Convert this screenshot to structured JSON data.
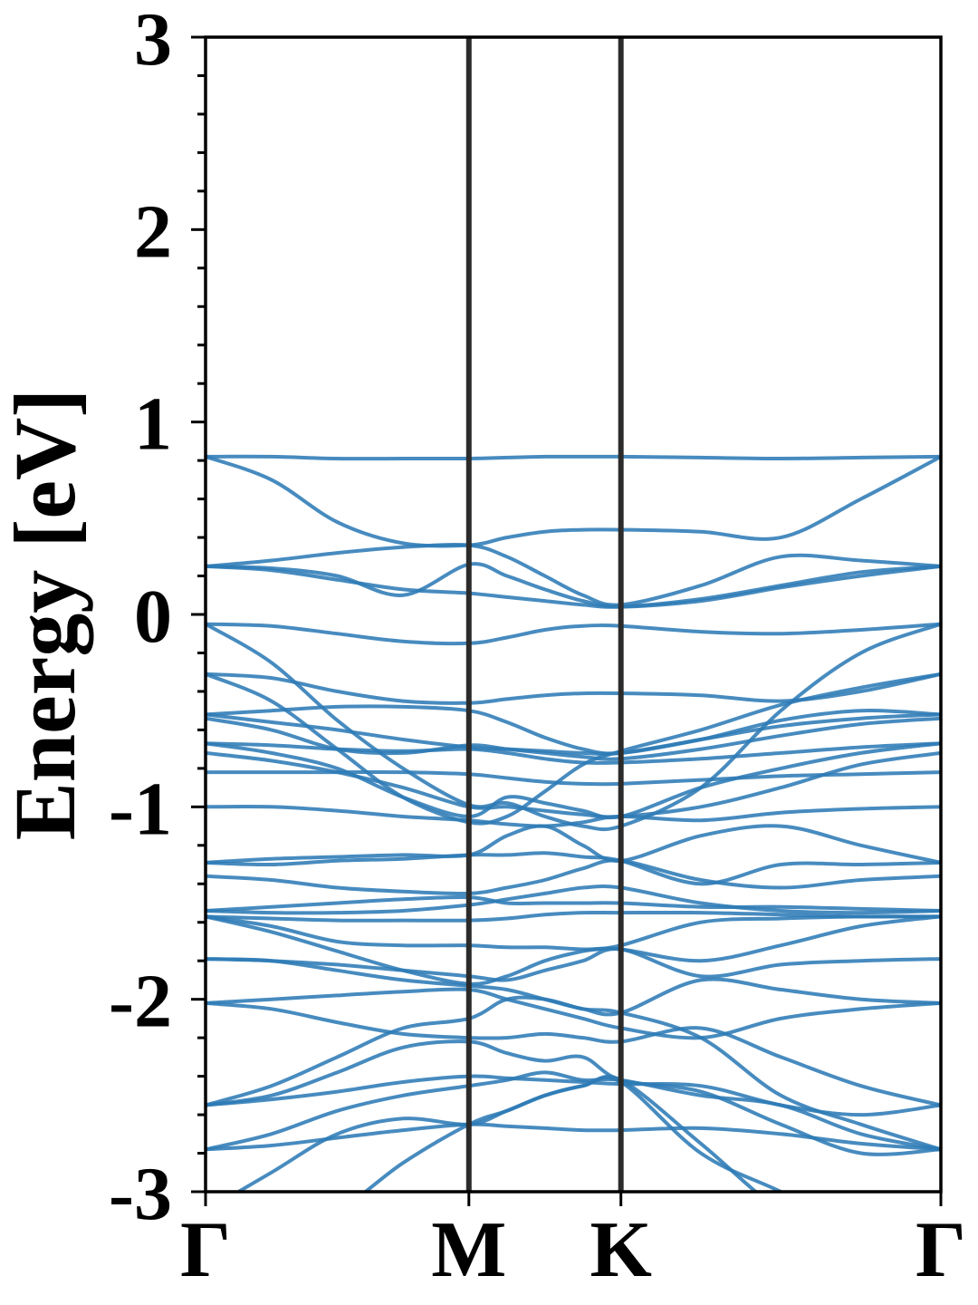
{
  "chart_data": {
    "type": "line",
    "title": "",
    "ylabel": "Energy [eV]",
    "xlabel": "",
    "ylim": [
      -3,
      3
    ],
    "yticks": [
      "-3",
      "-2",
      "-1",
      "0",
      "1",
      "2",
      "3"
    ],
    "y_minor_step": 0.2,
    "xlim": [
      0,
      2.7925
    ],
    "kpoints": [
      {
        "label": "Γ",
        "x": 0
      },
      {
        "label": "M",
        "x": 1.0
      },
      {
        "label": "K",
        "x": 1.5774
      },
      {
        "label": "Γ",
        "x": 2.7925
      }
    ],
    "band_color": "#2e7bb6",
    "kpoint_line_color": "#2b2b2b",
    "grid": false,
    "legend": "none",
    "x": [
      0,
      0.25,
      0.5,
      0.75,
      1.0,
      1.1443,
      1.2887,
      1.433,
      1.5774,
      1.8812,
      2.1849,
      2.4887,
      2.7925
    ],
    "bands": [
      [
        0.82,
        0.82,
        0.81,
        0.81,
        0.81,
        0.815,
        0.82,
        0.82,
        0.82,
        0.815,
        0.81,
        0.815,
        0.82
      ],
      [
        0.82,
        0.7,
        0.48,
        0.37,
        0.36,
        0.4,
        0.43,
        0.44,
        0.44,
        0.43,
        0.4,
        0.6,
        0.82
      ],
      [
        0.25,
        0.28,
        0.32,
        0.35,
        0.36,
        0.3,
        0.2,
        0.1,
        0.05,
        0.15,
        0.3,
        0.28,
        0.25
      ],
      [
        0.25,
        0.24,
        0.2,
        0.1,
        0.26,
        0.2,
        0.13,
        0.07,
        0.04,
        0.07,
        0.14,
        0.2,
        0.25
      ],
      [
        0.25,
        0.23,
        0.18,
        0.13,
        0.11,
        0.09,
        0.07,
        0.05,
        0.04,
        0.08,
        0.15,
        0.22,
        0.25
      ],
      [
        -0.05,
        -0.06,
        -0.1,
        -0.14,
        -0.15,
        -0.12,
        -0.08,
        -0.06,
        -0.06,
        -0.09,
        -0.1,
        -0.08,
        -0.05
      ],
      [
        -0.05,
        -0.25,
        -0.55,
        -0.8,
        -0.99,
        -0.98,
        -1.05,
        -1.1,
        -1.1,
        -0.9,
        -0.5,
        -0.2,
        -0.05
      ],
      [
        -0.31,
        -0.33,
        -0.4,
        -0.45,
        -0.46,
        -0.44,
        -0.42,
        -0.41,
        -0.41,
        -0.42,
        -0.45,
        -0.4,
        -0.31
      ],
      [
        -0.31,
        -0.45,
        -0.7,
        -0.95,
        -1.08,
        -1.05,
        -0.92,
        -0.78,
        -0.71,
        -0.6,
        -0.47,
        -0.38,
        -0.31
      ],
      [
        -0.52,
        -0.5,
        -0.48,
        -0.48,
        -0.5,
        -0.56,
        -0.64,
        -0.7,
        -0.72,
        -0.65,
        -0.55,
        -0.5,
        -0.52
      ],
      [
        -0.52,
        -0.56,
        -0.6,
        -0.65,
        -0.69,
        -0.7,
        -0.71,
        -0.72,
        -0.72,
        -0.65,
        -0.58,
        -0.54,
        -0.52
      ],
      [
        -0.54,
        -0.6,
        -0.7,
        -0.72,
        -0.68,
        -0.7,
        -0.72,
        -0.74,
        -0.75,
        -0.7,
        -0.63,
        -0.57,
        -0.54
      ],
      [
        -0.67,
        -0.68,
        -0.7,
        -0.71,
        -0.7,
        -0.72,
        -0.75,
        -0.77,
        -0.77,
        -0.75,
        -0.72,
        -0.69,
        -0.67
      ],
      [
        -0.67,
        -0.72,
        -0.8,
        -0.95,
        -1.05,
        -0.95,
        -0.98,
        -1.02,
        -1.05,
        -0.9,
        -0.8,
        -0.72,
        -0.67
      ],
      [
        -0.72,
        -0.76,
        -0.82,
        -0.9,
        -1.0,
        -1.0,
        -1.02,
        -1.04,
        -1.05,
        -1.0,
        -0.9,
        -0.78,
        -0.72
      ],
      [
        -0.82,
        -0.82,
        -0.82,
        -0.82,
        -0.83,
        -0.85,
        -0.87,
        -0.88,
        -0.88,
        -0.86,
        -0.84,
        -0.83,
        -0.82
      ],
      [
        -1.0,
        -1.0,
        -1.02,
        -1.05,
        -1.07,
        -1.09,
        -1.1,
        -1.08,
        -1.05,
        -1.07,
        -1.03,
        -1.01,
        -1.0
      ],
      [
        -1.29,
        -1.27,
        -1.26,
        -1.25,
        -1.25,
        -1.15,
        -1.1,
        -1.2,
        -1.28,
        -1.15,
        -1.1,
        -1.2,
        -1.29
      ],
      [
        -1.29,
        -1.3,
        -1.28,
        -1.27,
        -1.25,
        -1.25,
        -1.24,
        -1.26,
        -1.28,
        -1.4,
        -1.3,
        -1.3,
        -1.29
      ],
      [
        -1.36,
        -1.38,
        -1.42,
        -1.44,
        -1.45,
        -1.42,
        -1.38,
        -1.32,
        -1.28,
        -1.38,
        -1.42,
        -1.38,
        -1.36
      ],
      [
        -1.54,
        -1.52,
        -1.5,
        -1.48,
        -1.47,
        -1.5,
        -1.5,
        -1.5,
        -1.5,
        -1.52,
        -1.52,
        -1.53,
        -1.54
      ],
      [
        -1.54,
        -1.55,
        -1.55,
        -1.54,
        -1.51,
        -1.48,
        -1.45,
        -1.42,
        -1.42,
        -1.5,
        -1.54,
        -1.55,
        -1.54
      ],
      [
        -1.57,
        -1.58,
        -1.59,
        -1.59,
        -1.59,
        -1.58,
        -1.56,
        -1.55,
        -1.55,
        -1.55,
        -1.56,
        -1.57,
        -1.57
      ],
      [
        -1.57,
        -1.65,
        -1.75,
        -1.85,
        -1.92,
        -1.88,
        -1.8,
        -1.75,
        -1.72,
        -1.6,
        -1.58,
        -1.57,
        -1.57
      ],
      [
        -1.57,
        -1.62,
        -1.7,
        -1.72,
        -1.72,
        -1.73,
        -1.73,
        -1.74,
        -1.74,
        -1.8,
        -1.72,
        -1.62,
        -1.57
      ],
      [
        -1.79,
        -1.8,
        -1.82,
        -1.85,
        -1.88,
        -1.9,
        -1.85,
        -1.8,
        -1.74,
        -1.88,
        -1.82,
        -1.8,
        -1.79
      ],
      [
        -1.79,
        -1.8,
        -1.85,
        -1.9,
        -1.93,
        -1.95,
        -2.0,
        -2.05,
        -2.07,
        -1.9,
        -1.95,
        -2.0,
        -2.02
      ],
      [
        -2.02,
        -2.0,
        -1.98,
        -1.96,
        -1.95,
        -2.0,
        -2.05,
        -2.1,
        -2.15,
        -2.2,
        -2.1,
        -2.05,
        -2.02
      ],
      [
        -2.02,
        -2.05,
        -2.12,
        -2.18,
        -2.2,
        -2.2,
        -2.18,
        -2.2,
        -2.22,
        -2.15,
        -2.3,
        -2.45,
        -2.55
      ],
      [
        -2.55,
        -2.45,
        -2.3,
        -2.15,
        -2.1,
        -2.0,
        -2.0,
        -2.05,
        -2.07,
        -2.2,
        -2.5,
        -2.65,
        -2.78
      ],
      [
        -2.55,
        -2.52,
        -2.48,
        -2.43,
        -2.4,
        -2.41,
        -2.42,
        -2.43,
        -2.44,
        -2.45,
        -2.55,
        -2.6,
        -2.55
      ],
      [
        -2.55,
        -2.5,
        -2.38,
        -2.25,
        -2.22,
        -2.28,
        -2.32,
        -2.3,
        -2.42,
        -2.48,
        -2.65,
        -2.8,
        -2.78
      ],
      [
        -2.78,
        -2.7,
        -2.58,
        -2.5,
        -2.45,
        -2.42,
        -2.38,
        -2.42,
        -2.42,
        -2.5,
        -2.55,
        -2.7,
        -2.78
      ],
      [
        -2.78,
        -2.76,
        -2.72,
        -2.68,
        -2.65,
        -2.66,
        -2.67,
        -2.68,
        -2.68,
        -2.67,
        -2.7,
        -2.75,
        -2.78
      ],
      [
        -3.1,
        -2.9,
        -2.7,
        -2.62,
        -2.65,
        -2.58,
        -2.5,
        -2.45,
        -2.42,
        -2.75,
        -3.1,
        -3.3,
        -3.4
      ],
      [
        -3.3,
        -3.2,
        -3.1,
        -2.85,
        -2.65,
        -2.58,
        -2.5,
        -2.45,
        -2.43,
        -2.8,
        -3.0,
        -3.2,
        -3.3
      ]
    ]
  }
}
